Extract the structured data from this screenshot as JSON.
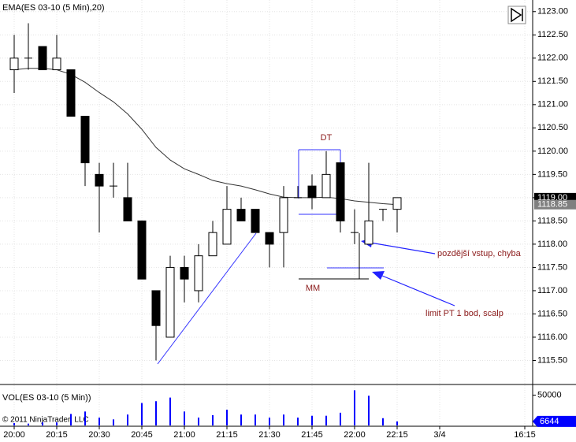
{
  "chart_data": [
    {
      "type": "candlestick",
      "title": "EMA(ES 03-10 (5 Min),20)",
      "grid": true,
      "categories": [
        "20:00",
        null,
        null,
        "20:15",
        null,
        null,
        "20:30",
        null,
        null,
        "20:45",
        null,
        null,
        "21:00",
        null,
        null,
        "21:15",
        null,
        null,
        "21:30",
        null,
        null,
        "21:45",
        null,
        null,
        "22:00",
        null,
        null,
        "22:15",
        null,
        null,
        "3/4",
        null,
        null,
        null,
        null,
        null,
        "16:15"
      ],
      "open": [
        1121.75,
        1122.0,
        1122.25,
        1121.75,
        1121.75,
        1120.75,
        1119.5,
        1119.25,
        1119.0,
        1118.5,
        1117.0,
        1116.0,
        1117.5,
        1117.0,
        1117.75,
        1118.0,
        1118.75,
        1118.75,
        1118.25,
        1118.25,
        1119.0,
        1119.25,
        1119.0,
        1119.75,
        1118.25,
        1118.0,
        1118.75,
        1118.75,
        null,
        null,
        null,
        null,
        null,
        null,
        null,
        null,
        null
      ],
      "high": [
        1122.5,
        1122.75,
        1122.25,
        1122.5,
        1121.75,
        1120.75,
        1119.75,
        1119.75,
        1119.75,
        1118.5,
        1117.0,
        1117.75,
        1117.75,
        1118.0,
        1118.5,
        1119.25,
        1119.0,
        1118.75,
        1118.25,
        1119.25,
        1119.25,
        1119.5,
        1120.0,
        1119.75,
        1118.75,
        1119.75,
        1118.75,
        1119.0,
        null,
        null,
        null,
        null,
        null,
        null,
        null,
        null,
        null
      ],
      "low": [
        1121.25,
        1121.75,
        1121.75,
        1121.75,
        1120.75,
        1119.25,
        1118.25,
        1119.0,
        1118.5,
        1117.25,
        1115.5,
        1116.0,
        1116.75,
        1116.75,
        1117.75,
        1118.0,
        1118.5,
        1118.25,
        1117.5,
        1117.5,
        1119.0,
        1118.75,
        1119.0,
        1118.25,
        1118.0,
        1118.0,
        1118.5,
        1118.25,
        null,
        null,
        null,
        null,
        null,
        null,
        null,
        null,
        null
      ],
      "close": [
        1122.0,
        1122.0,
        1121.75,
        1122.0,
        1120.75,
        1119.75,
        1119.25,
        1119.25,
        1118.5,
        1117.25,
        1116.25,
        1117.5,
        1117.25,
        1117.75,
        1118.25,
        1118.75,
        1118.5,
        1118.25,
        1118.0,
        1119.0,
        1119.0,
        1119.0,
        1119.5,
        1118.5,
        1118.25,
        1118.5,
        1118.75,
        1119.0,
        null,
        null,
        null,
        null,
        null,
        null,
        null,
        null,
        null
      ],
      "ema": {
        "color": "#333333",
        "values": [
          1121.75,
          1121.78,
          1121.78,
          1121.75,
          1121.65,
          1121.48,
          1121.26,
          1121.06,
          1120.8,
          1120.47,
          1120.08,
          1119.81,
          1119.62,
          1119.5,
          1119.37,
          1119.3,
          1119.25,
          1119.17,
          1119.08,
          1119.01,
          1119.0,
          1119.0,
          1119.01,
          1118.98,
          1118.93,
          1118.9,
          1118.87,
          1118.85,
          null,
          null,
          null,
          null,
          null,
          null,
          null,
          null,
          null
        ]
      },
      "ylim": [
        1115.0,
        1123.25
      ],
      "yticks": [
        {
          "value": 1115.5,
          "label": "1115.50"
        },
        {
          "value": 1116,
          "label": "1116.00"
        },
        {
          "value": 1116.5,
          "label": "1116.50"
        },
        {
          "value": 1117,
          "label": "1117.00"
        },
        {
          "value": 1117.5,
          "label": "1117.50"
        },
        {
          "value": 1118,
          "label": "1118.00"
        },
        {
          "value": 1118.5,
          "label": "1118.50"
        },
        {
          "value": 1119,
          "label": "1119.00"
        },
        {
          "value": 1119.5,
          "label": "1119.50"
        },
        {
          "value": 1120,
          "label": "1120.00"
        },
        {
          "value": 1120.5,
          "label": "1120.50"
        },
        {
          "value": 1121,
          "label": "1121.00"
        },
        {
          "value": 1121.5,
          "label": "1121.50"
        },
        {
          "value": 1122,
          "label": "1122.00"
        },
        {
          "value": 1122.5,
          "label": "1122.50"
        },
        {
          "value": 1123,
          "label": "1123.00"
        }
      ],
      "price_markers": [
        {
          "value": 1119.0,
          "label": "1119.00",
          "color": "#000000"
        },
        {
          "value": 1118.85,
          "label": "1118.85",
          "color": "#808080"
        }
      ],
      "annotations": [
        "DT",
        "MM",
        "pozdější vstup, chyba",
        "limit PT 1 bod, scalp"
      ]
    },
    {
      "type": "bar",
      "title": "VOL(ES 03-10 (5 Min))",
      "subtitle": "© 2011 NinjaTrader, LLC",
      "color": "#0000ff",
      "values": [
        4000,
        3000,
        5000,
        5000,
        19000,
        23000,
        13000,
        10000,
        18000,
        37000,
        40000,
        46000,
        23000,
        13000,
        17000,
        26000,
        18000,
        18000,
        13000,
        18000,
        13000,
        16000,
        16000,
        21000,
        58000,
        49000,
        12000,
        6644
      ],
      "ylim": [
        0,
        65000
      ],
      "yticks": [
        50000
      ]
    }
  ]
}
